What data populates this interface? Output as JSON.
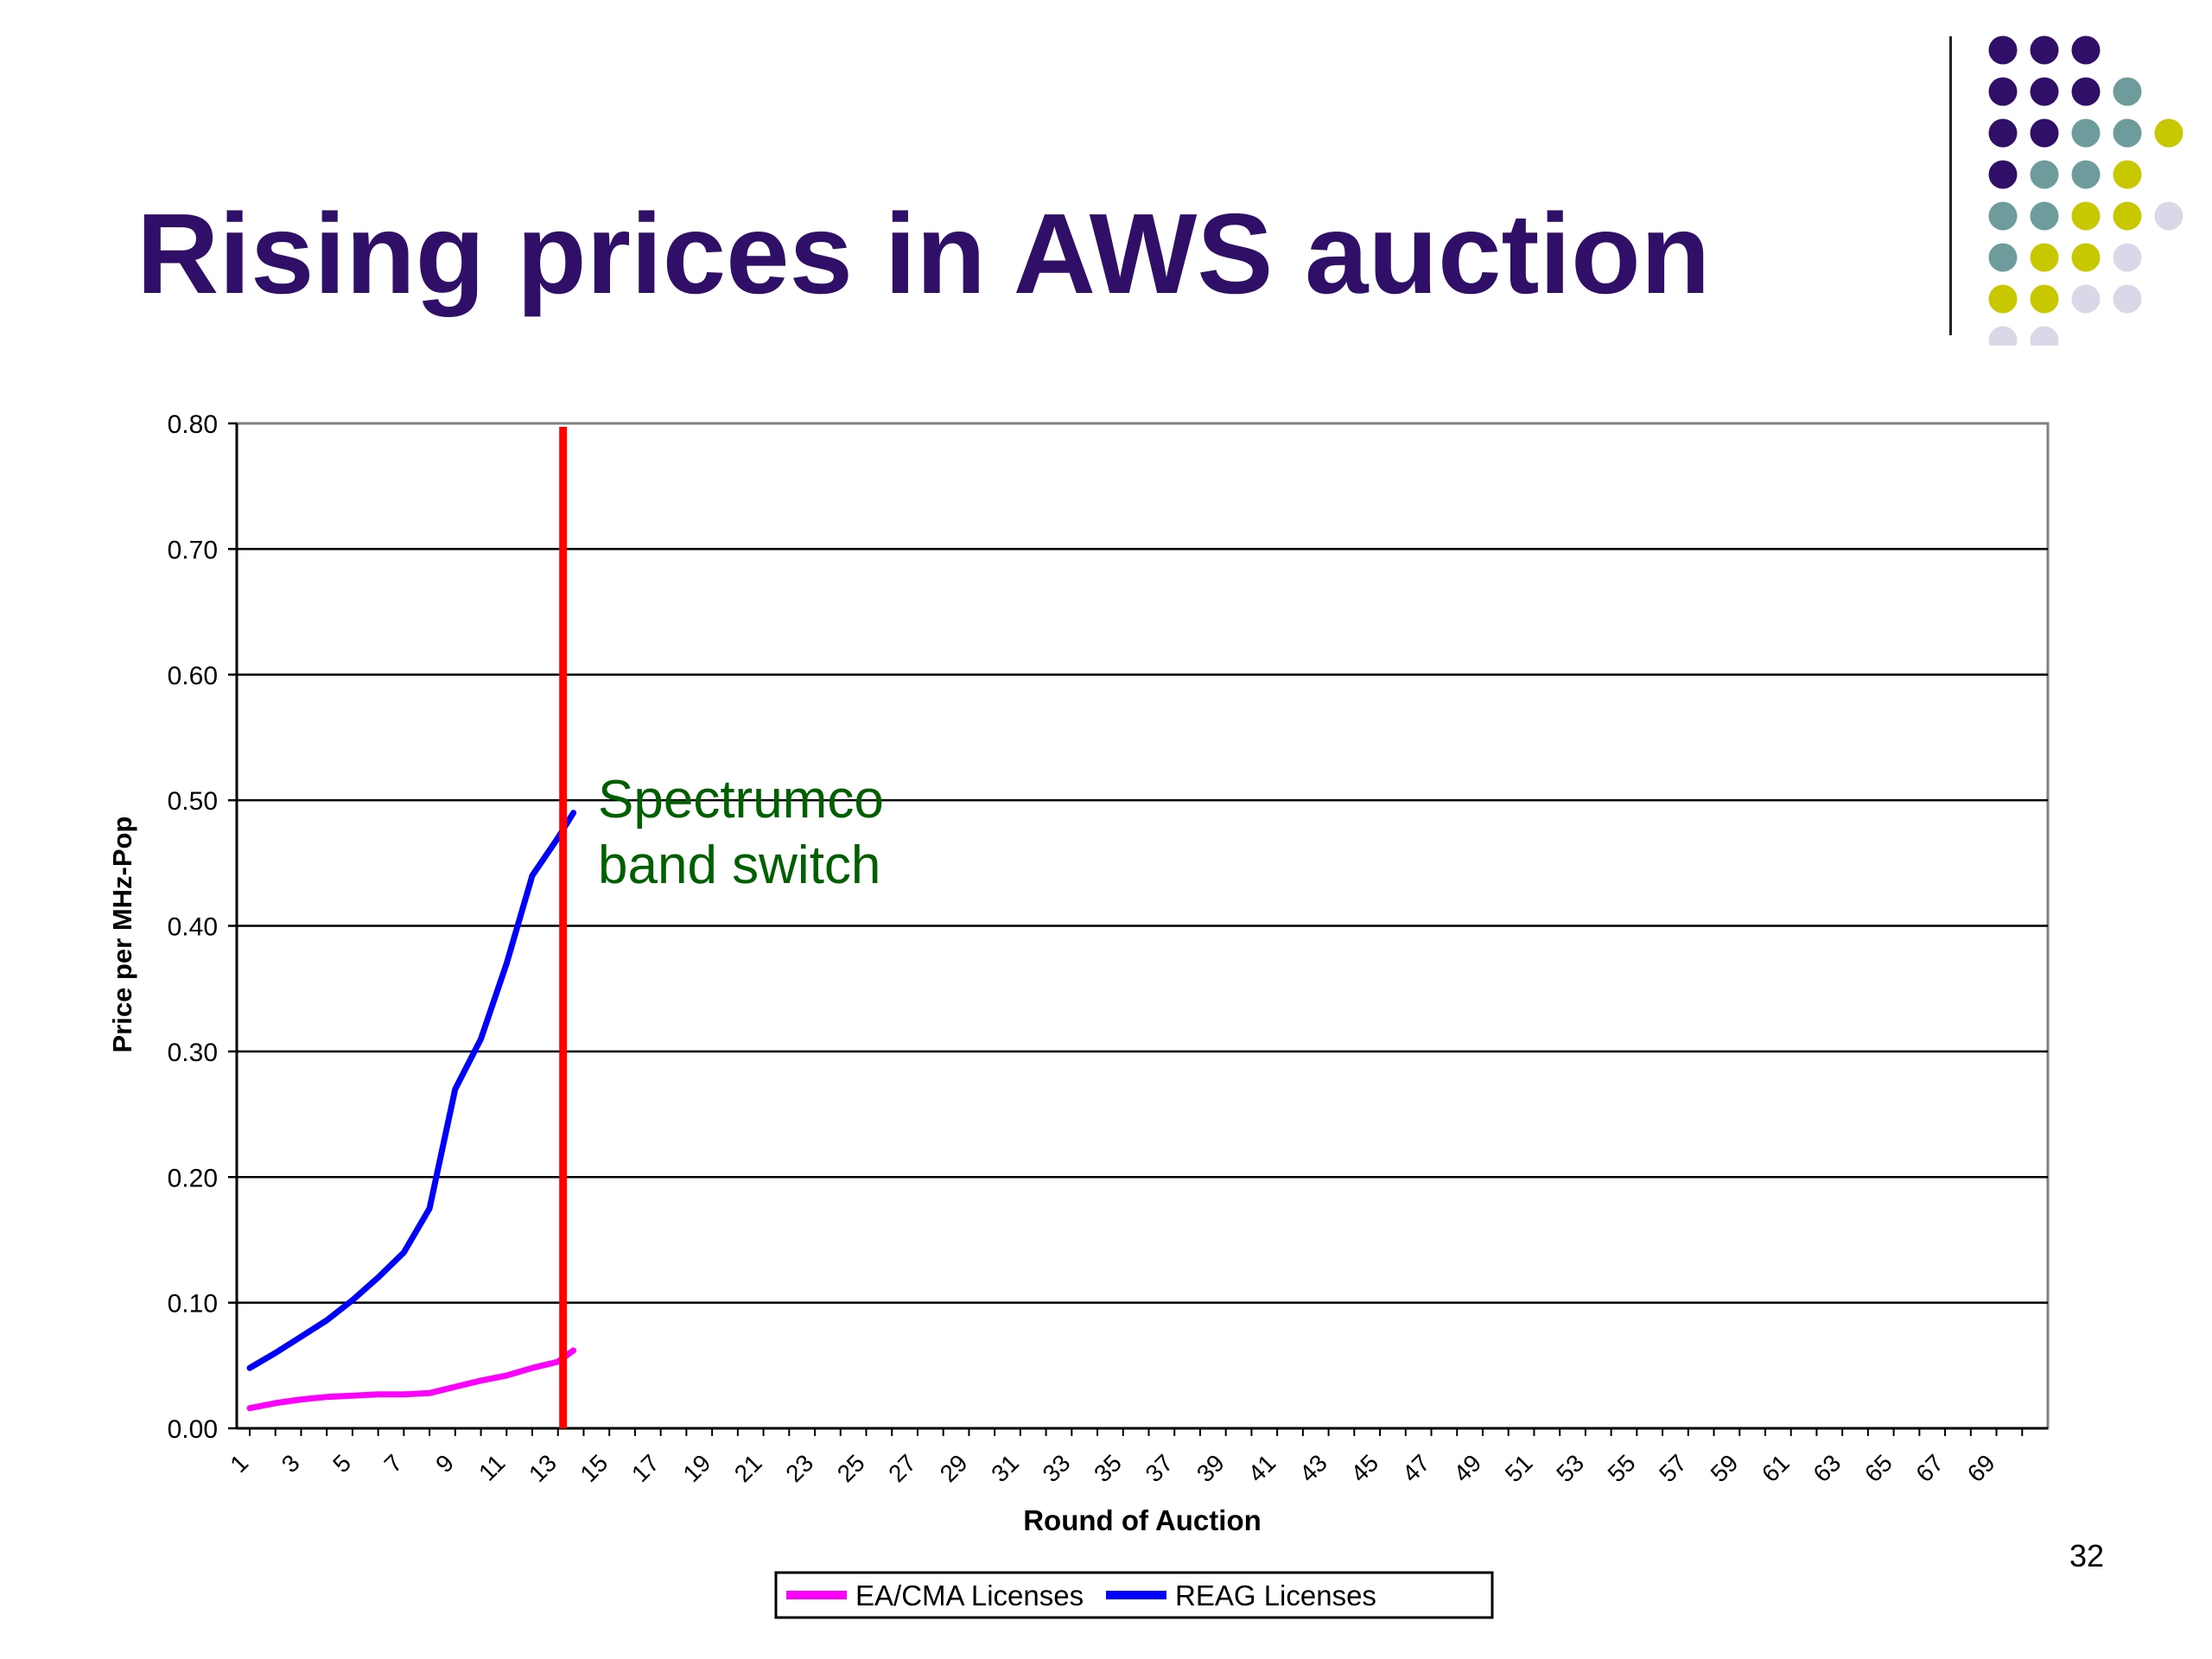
{
  "slide": {
    "title": "Rising prices in AWS auction",
    "page_number": "32"
  },
  "decoration": {
    "dot_colors": {
      "P": "#2f0f68",
      "T": "#6e9c9c",
      "Y": "#c8c800",
      "L": "#d8d8e8"
    },
    "dot_rows": [
      "PPP",
      "PPPT",
      "PPTTY",
      "PTTY",
      "TTYYL",
      "TYYL",
      "YYLL",
      "LL"
    ]
  },
  "chart_data": {
    "type": "line",
    "title": "",
    "xlabel": "Round of Auction",
    "ylabel": "Price per MHz-Pop",
    "xlim": [
      1,
      70
    ],
    "ylim": [
      0,
      0.8
    ],
    "x_tick_labels": [
      "1",
      "3",
      "5",
      "7",
      "9",
      "11",
      "13",
      "15",
      "17",
      "19",
      "21",
      "23",
      "25",
      "27",
      "29",
      "31",
      "33",
      "35",
      "37",
      "39",
      "41",
      "43",
      "45",
      "47",
      "49",
      "51",
      "53",
      "55",
      "57",
      "59",
      "61",
      "63",
      "65",
      "67",
      "69"
    ],
    "y_tick_labels": [
      "0.00",
      "0.10",
      "0.20",
      "0.30",
      "0.40",
      "0.50",
      "0.60",
      "0.70",
      "0.80"
    ],
    "y_tick_values": [
      0,
      0.1,
      0.2,
      0.3,
      0.4,
      0.5,
      0.6,
      0.7,
      0.8
    ],
    "grid": true,
    "legend_position": "bottom",
    "series": [
      {
        "name": "EA/CMA Licenses",
        "color": "#ff00ff",
        "x": [
          1,
          2,
          3,
          4,
          5,
          6,
          7,
          8,
          9,
          10,
          11,
          12,
          13,
          13.6
        ],
        "values": [
          0.016,
          0.02,
          0.023,
          0.025,
          0.026,
          0.027,
          0.027,
          0.028,
          0.033,
          0.038,
          0.042,
          0.048,
          0.053,
          0.062
        ]
      },
      {
        "name": "REAG Licenses",
        "color": "#0000ff",
        "x": [
          1,
          2,
          3,
          4,
          5,
          6,
          7,
          8,
          9,
          10,
          11,
          12,
          13,
          13.6
        ],
        "values": [
          0.048,
          0.06,
          0.073,
          0.086,
          0.102,
          0.12,
          0.14,
          0.175,
          0.27,
          0.31,
          0.37,
          0.44,
          0.47,
          0.49
        ]
      }
    ],
    "annotations": [
      {
        "text_lines": [
          "Spectrumco",
          "band switch"
        ],
        "color": "#006000"
      }
    ],
    "vertical_line": {
      "x": 13.2,
      "color": "#ff0000"
    }
  }
}
